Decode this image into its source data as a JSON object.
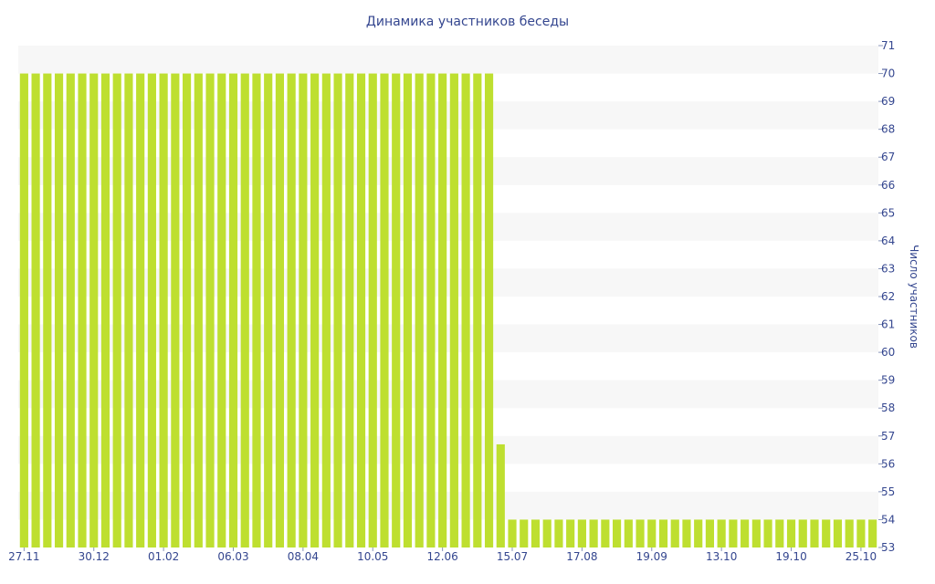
{
  "chart_data": {
    "type": "bar",
    "title": "Динамика участников беседы",
    "xlabel": "",
    "ylabel": "Число участников",
    "y_axis_position": "right",
    "ylim": [
      53,
      71
    ],
    "y_ticks": [
      53,
      54,
      55,
      56,
      57,
      58,
      59,
      60,
      61,
      62,
      63,
      64,
      65,
      66,
      67,
      68,
      69,
      70,
      71
    ],
    "x_tick_labels": [
      {
        "index": 0,
        "label": "27.11"
      },
      {
        "index": 6,
        "label": "30.12"
      },
      {
        "index": 12,
        "label": "01.02"
      },
      {
        "index": 18,
        "label": "06.03"
      },
      {
        "index": 24,
        "label": "08.04"
      },
      {
        "index": 30,
        "label": "10.05"
      },
      {
        "index": 36,
        "label": "12.06"
      },
      {
        "index": 42,
        "label": "15.07"
      },
      {
        "index": 48,
        "label": "17.08"
      },
      {
        "index": 54,
        "label": "19.09"
      },
      {
        "index": 60,
        "label": "13.10"
      },
      {
        "index": 66,
        "label": "19.10"
      },
      {
        "index": 72,
        "label": "25.10"
      }
    ],
    "values": [
      70,
      70,
      70,
      70,
      70,
      70,
      70,
      70,
      70,
      70,
      70,
      70,
      70,
      70,
      70,
      70,
      70,
      70,
      70,
      70,
      70,
      70,
      70,
      70,
      70,
      70,
      70,
      70,
      70,
      70,
      70,
      70,
      70,
      70,
      70,
      70,
      70,
      70,
      70,
      70,
      70,
      56.7,
      54,
      54,
      54,
      54,
      54,
      54,
      54,
      54,
      54,
      54,
      54,
      54,
      54,
      54,
      54,
      54,
      54,
      54,
      54,
      54,
      54,
      54,
      54,
      54,
      54,
      54,
      54,
      54,
      54,
      54,
      54,
      54
    ],
    "bar_color": "#bedf30",
    "band_color": "#f7f7f7",
    "text_color": "#34468f",
    "grid": "alternating horizontal bands"
  }
}
